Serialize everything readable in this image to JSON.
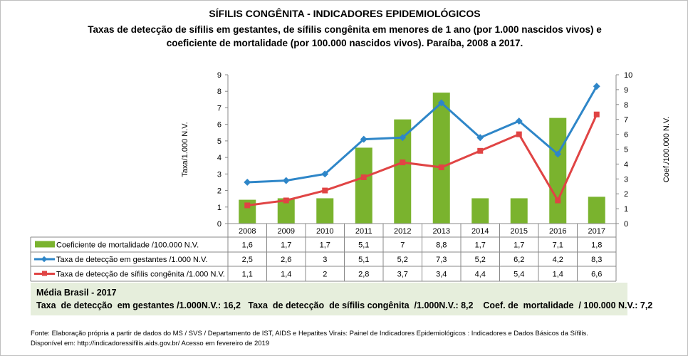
{
  "title": "SÍFILIS CONGÊNITA - INDICADORES EPIDEMIOLÓGICOS",
  "subtitle_line1": "Taxas de detecção de sífilis em gestantes, de sífilis congênita em menores de 1 ano (por 1.000 nascidos vivos) e",
  "subtitle_line2": "coeficiente de mortalidade (por 100.000 nascidos vivos). Paraíba, 2008 a 2017.",
  "chart_data": {
    "type": "bar+line",
    "categories": [
      "2008",
      "2009",
      "2010",
      "2011",
      "2012",
      "2013",
      "2014",
      "2015",
      "2016",
      "2017"
    ],
    "ylabel_left": "Taxa/1.000 N.V.",
    "ylabel_right": "Coef./100.000 N.V.",
    "ylim_left": [
      0,
      9
    ],
    "ylim_right": [
      0,
      10
    ],
    "yticks_left": [
      "0",
      "1",
      "2",
      "3",
      "4",
      "5",
      "6",
      "7",
      "8",
      "9"
    ],
    "yticks_right": [
      "0",
      "1",
      "2",
      "3",
      "4",
      "5",
      "6",
      "7",
      "8",
      "9",
      "10"
    ],
    "grid": false,
    "legend": "data-table",
    "series": [
      {
        "name": "Coeficiente de mortalidade /100.000 N.V.",
        "type": "bar",
        "axis": "right",
        "color": "#7ab32e",
        "values": [
          1.6,
          1.7,
          1.7,
          5.1,
          7,
          8.8,
          1.7,
          1.7,
          7.1,
          1.8
        ],
        "labels": [
          "1,6",
          "1,7",
          "1,7",
          "5,1",
          "7",
          "8,8",
          "1,7",
          "1,7",
          "7,1",
          "1,8"
        ]
      },
      {
        "name": "Taxa de detecção em gestantes /1.000 N.V.",
        "type": "line",
        "axis": "left",
        "color": "#2e86c8",
        "values": [
          2.5,
          2.6,
          3,
          5.1,
          5.2,
          7.3,
          5.2,
          6.2,
          4.2,
          8.3
        ],
        "labels": [
          "2,5",
          "2,6",
          "3",
          "5,1",
          "5,2",
          "7,3",
          "5,2",
          "6,2",
          "4,2",
          "8,3"
        ]
      },
      {
        "name": "Taxa de detecção de sífilis congênita /1.000 N.V.",
        "type": "line",
        "axis": "left",
        "color": "#e04444",
        "values": [
          1.1,
          1.4,
          2,
          2.8,
          3.7,
          3.4,
          4.4,
          5.4,
          1.4,
          6.6
        ],
        "labels": [
          "1,1",
          "1,4",
          "2",
          "2,8",
          "3,7",
          "3,4",
          "4,4",
          "5,4",
          "1,4",
          "6,6"
        ]
      }
    ]
  },
  "media": {
    "heading": "Média Brasil  - 2017",
    "text": "Taxa  de detecção  em gestantes /1.000N.V.: 16,2   Taxa  de detecção  de sífilis congênita  /1.000N.V.: 8,2    Coef. de  mortalidade  / 100.000 N.V.: 7,2"
  },
  "fonte": {
    "line1": "Fonte: Elaboração própria a partir de dados do MS / SVS / Departamento de IST, AIDS e Hepatites Virais:  Painel de Indicadores Epidemiológicos : Indicadores e Dados Básicos da Sífilis.",
    "line2": "Disponível em: http://indicadoressifilis.aids.gov.br/    Acesso em fevereiro de 2019"
  }
}
